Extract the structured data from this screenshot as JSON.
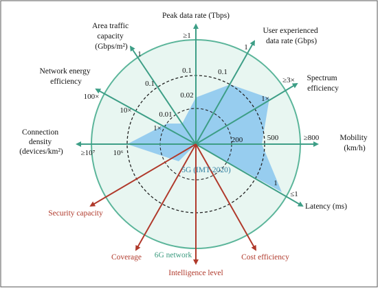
{
  "colors": {
    "frame": "#555555",
    "outer_fill": "#e8f6f1",
    "outer_stroke": "#5bb59a",
    "axis_green": "#3d9e86",
    "axis_red": "#b0392b",
    "area_5g": "#8ec9ee",
    "dashed": "#222222"
  },
  "axes": {
    "peak": {
      "label_lines": [
        "Peak data rate (Tbps)"
      ],
      "ticks": [
        "0.02",
        "0.1",
        "≥1"
      ]
    },
    "user": {
      "label_lines": [
        "User experienced",
        "data rate (Gbps)"
      ],
      "ticks": [
        "0.1",
        "1"
      ]
    },
    "spectrum": {
      "label_lines": [
        "Spectrum",
        "efficiency"
      ],
      "ticks": [
        "1×",
        "≥3×"
      ]
    },
    "mobility": {
      "label_lines": [
        "Mobility",
        "(km/h)"
      ],
      "ticks": [
        "200",
        "500",
        "≥800"
      ]
    },
    "latency": {
      "label_lines": [
        "Latency (ms)"
      ],
      "ticks": [
        "1",
        "≤1"
      ]
    },
    "connection": {
      "label_lines": [
        "Connection",
        "density",
        "(devices/km²)"
      ],
      "ticks": [
        "10⁶",
        "≥10⁷"
      ]
    },
    "energy": {
      "label_lines": [
        "Network energy",
        "efficiency"
      ],
      "ticks": [
        "1×",
        "10×",
        "100×"
      ]
    },
    "area": {
      "label_lines": [
        "Area traffic",
        "capacity",
        "(Gbps/m²)"
      ],
      "ticks": [
        "0.01",
        "0.1",
        "1"
      ]
    }
  },
  "new_axes": {
    "security": "Security capacity",
    "coverage": "Coverage",
    "intelligence": "Intelligence level",
    "cost": "Cost efficiency"
  },
  "legend": {
    "label_5g": "5G (IMT-2020)",
    "label_6g": "6G network"
  }
}
